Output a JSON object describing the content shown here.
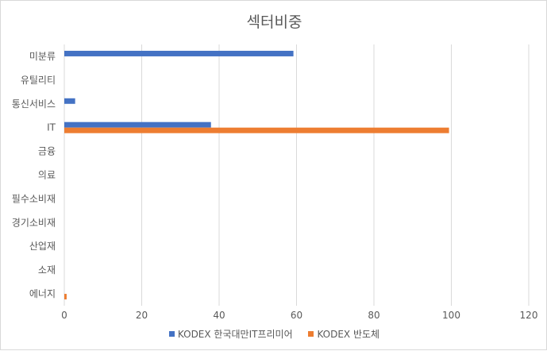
{
  "chart_data": {
    "type": "bar",
    "orientation": "horizontal",
    "title": "섹터비중",
    "xlabel": "",
    "ylabel": "",
    "xlim": [
      0,
      120
    ],
    "xticks": [
      0,
      20,
      40,
      60,
      80,
      100,
      120
    ],
    "categories": [
      "미분류",
      "유틸리티",
      "통신서비스",
      "IT",
      "금융",
      "의료",
      "필수소비재",
      "경기소비재",
      "산업재",
      "소재",
      "에너지"
    ],
    "series": [
      {
        "name": "KODEX 한국대만IT프리미어",
        "color": "#4472c4",
        "values": [
          59.2,
          0,
          2.8,
          37.9,
          0,
          0,
          0,
          0,
          0,
          0,
          0
        ]
      },
      {
        "name": "KODEX 반도체",
        "color": "#ed7d31",
        "values": [
          0,
          0,
          0,
          99.4,
          0,
          0,
          0,
          0,
          0,
          0,
          0.6
        ]
      }
    ],
    "grid": "vertical",
    "legend_position": "bottom"
  }
}
